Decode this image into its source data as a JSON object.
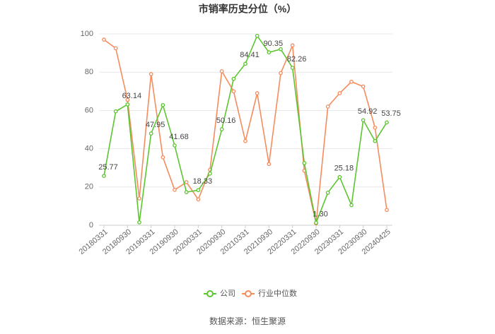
{
  "chart_data": {
    "type": "line",
    "title": "市销率历史分位（%）",
    "source": "数据来源：恒生聚源",
    "categories": [
      "20180331",
      null,
      "20180930",
      null,
      "20190331",
      null,
      "20190930",
      null,
      "20200331",
      null,
      "20200930",
      null,
      "20210331",
      null,
      "20210930",
      null,
      "20220331",
      null,
      "20220930",
      null,
      "20230331",
      null,
      "20230930",
      null,
      "20240425"
    ],
    "series": [
      {
        "name": "公司",
        "color": "#5cc530",
        "values": [
          25.77,
          59.5,
          63.14,
          1.5,
          47.95,
          62.8,
          41.68,
          17.3,
          18.33,
          27,
          50.16,
          76.5,
          84.41,
          99,
          90.35,
          92,
          82.26,
          32.5,
          1.3,
          17,
          25.18,
          10.5,
          54.92,
          44,
          53.75
        ],
        "value_labels": [
          "25.77",
          null,
          "63.14",
          null,
          "47.95",
          null,
          "41.68",
          null,
          "18.33",
          null,
          "50.16",
          null,
          "84.41",
          null,
          "90.35",
          null,
          "82.26",
          null,
          "1.30",
          null,
          "25.18",
          null,
          "54.92",
          null,
          "53.75"
        ]
      },
      {
        "name": "行业中位数",
        "color": "#f58c5e",
        "values": [
          97,
          92.5,
          65.5,
          14,
          79,
          35.5,
          18.5,
          22.5,
          13.5,
          29,
          80.5,
          70,
          44,
          69,
          32,
          79.5,
          94,
          28.5,
          1,
          62,
          69,
          75,
          72.5,
          51,
          8
        ]
      }
    ],
    "ylim": [
      0,
      100
    ],
    "yticks": [
      0,
      20,
      40,
      60,
      80,
      100
    ],
    "grid": true,
    "legend": "bottom"
  }
}
